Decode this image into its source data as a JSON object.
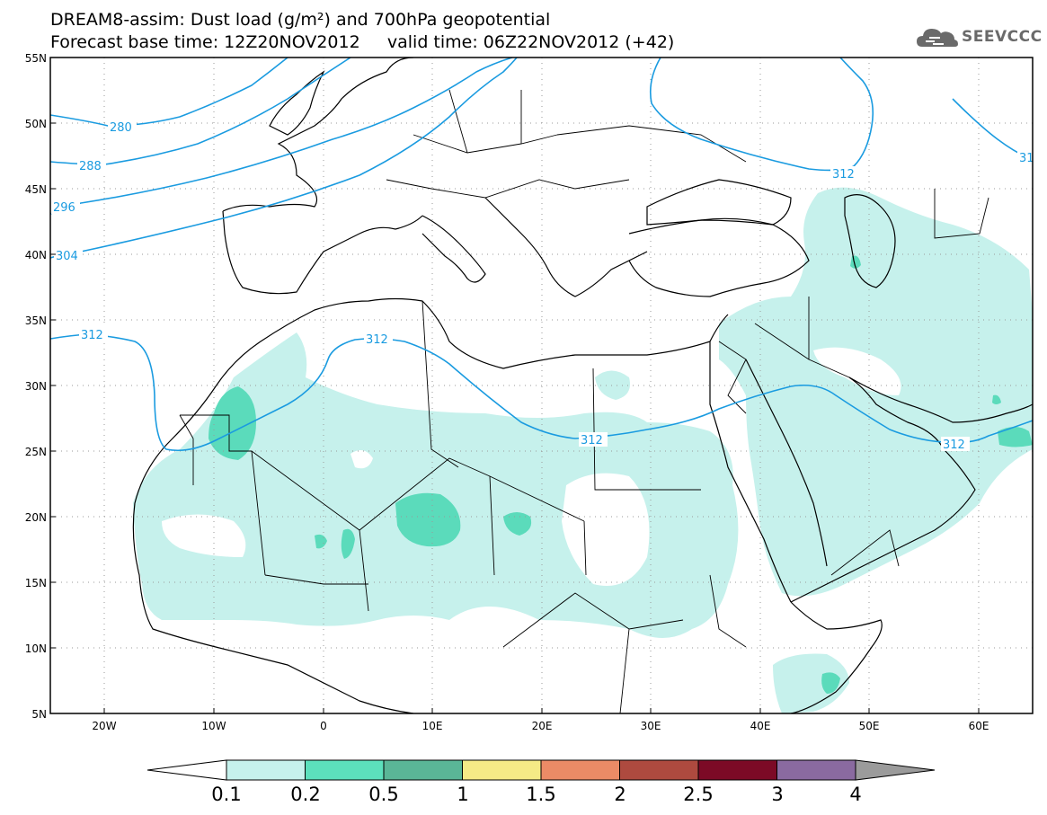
{
  "header": {
    "line1": "DREAM8-assim: Dust load (g/m²) and 700hPa geopotential",
    "line2": "Forecast base time: 12Z20NOV2012     valid time: 06Z22NOV2012 (+42)",
    "logo_text": "SEEVCCC"
  },
  "map": {
    "lat_labels": [
      "55N",
      "50N",
      "45N",
      "40N",
      "35N",
      "30N",
      "25N",
      "20N",
      "15N",
      "10N",
      "5N"
    ],
    "lon_labels": [
      "20W",
      "10W",
      "0",
      "10E",
      "20E",
      "30E",
      "40E",
      "50E",
      "60E"
    ],
    "contour_labels": [
      "280",
      "288",
      "296",
      "304",
      "312",
      "312",
      "312",
      "312",
      "312",
      "31"
    ],
    "contour_color": "#1a9be0",
    "dust_colors": {
      "light": "#c6f1ec",
      "medium": "#5bdbbb"
    }
  },
  "colorbar": {
    "labels": [
      "0.1",
      "0.2",
      "0.5",
      "1",
      "1.5",
      "2",
      "2.5",
      "3",
      "4"
    ],
    "colors": [
      "#c6f1ec",
      "#5ce0bc",
      "#5ab697",
      "#f5ea86",
      "#eb8b66",
      "#ae4a3f",
      "#7c0a26",
      "#8a6aa0",
      "#9b9b9b"
    ]
  }
}
